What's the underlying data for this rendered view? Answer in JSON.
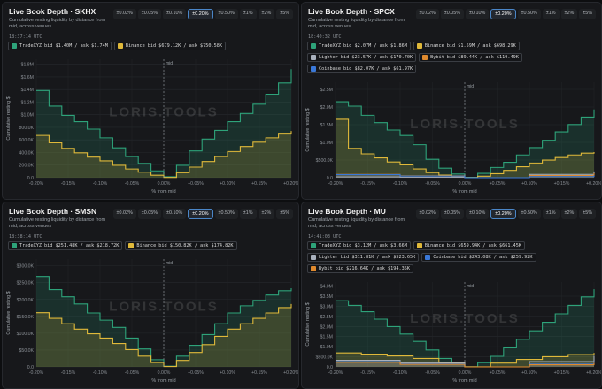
{
  "chart_data": [
    {
      "type": "area",
      "title": "Live Book Depth · SKHX",
      "subtitle": "Cumulative resting liquidity by distance from mid, across venues",
      "timestamp": "18:37:14 UTC",
      "tabs": [
        "±0.02%",
        "±0.05%",
        "±0.10%",
        "±0.20%",
        "±0.50%",
        "±1%",
        "±2%",
        "±5%"
      ],
      "active_tab": "±0.20%",
      "legend": [
        {
          "venue": "TradeXYZ",
          "text": "bid $1.40M / ask $1.74M",
          "color": "#2ea37a"
        },
        {
          "venue": "Binance",
          "text": "bid $679.12K / ask $750.58K",
          "color": "#e0b93a"
        }
      ],
      "ylabel": "Cumulative resting $",
      "xlabel": "% from mid",
      "mid_label": "mid",
      "watermark": "LORIS.TOOLS",
      "xticks": [
        "-0.20%",
        "-0.15%",
        "-0.10%",
        "-0.05%",
        "0.00%",
        "+0.05%",
        "+0.10%",
        "+0.15%",
        "+0.20%"
      ],
      "yticks": [
        "0.0",
        "200.0K",
        "400.0K",
        "600.0K",
        "800.0K",
        "$1.0M",
        "$1.2M",
        "$1.4M",
        "$1.6M",
        "$1.8M"
      ],
      "ylim": [
        0,
        1900000
      ],
      "series": [
        {
          "name": "TradeXYZ",
          "color": "#2ea37a",
          "x": [
            -0.2,
            -0.18,
            -0.16,
            -0.14,
            -0.12,
            -0.1,
            -0.08,
            -0.06,
            -0.04,
            -0.02,
            0,
            0.02,
            0.04,
            0.06,
            0.08,
            0.1,
            0.12,
            0.14,
            0.16,
            0.18,
            0.2
          ],
          "y": [
            1400000,
            1150000,
            1000000,
            900000,
            780000,
            640000,
            480000,
            340000,
            230000,
            110000,
            15000,
            200000,
            430000,
            620000,
            760000,
            900000,
            1030000,
            1180000,
            1340000,
            1520000,
            1740000
          ]
        },
        {
          "name": "Binance",
          "color": "#e0b93a",
          "x": [
            -0.2,
            -0.18,
            -0.16,
            -0.14,
            -0.12,
            -0.1,
            -0.08,
            -0.06,
            -0.04,
            -0.02,
            0,
            0.02,
            0.04,
            0.06,
            0.08,
            0.1,
            0.12,
            0.14,
            0.16,
            0.18,
            0.2
          ],
          "y": [
            679000,
            560000,
            470000,
            400000,
            330000,
            270000,
            200000,
            140000,
            90000,
            40000,
            5000,
            80000,
            170000,
            260000,
            340000,
            420000,
            500000,
            570000,
            640000,
            700000,
            750000
          ]
        }
      ]
    },
    {
      "type": "area",
      "title": "Live Book Depth · SPCX",
      "subtitle": "Cumulative resting liquidity by distance from mid, across venues",
      "timestamp": "18:40:32 UTC",
      "tabs": [
        "±0.02%",
        "±0.05%",
        "±0.10%",
        "±0.20%",
        "±0.50%",
        "±1%",
        "±2%",
        "±5%"
      ],
      "active_tab": "±0.20%",
      "legend": [
        {
          "venue": "TradeXYZ",
          "text": "bid $2.07M / ask $1.86M",
          "color": "#2ea37a"
        },
        {
          "venue": "Binance",
          "text": "bid $1.59M / ask $698.29K",
          "color": "#e0b93a"
        },
        {
          "venue": "Lighter",
          "text": "bid $23.57K / ask $170.70K",
          "color": "#a9b1bd"
        },
        {
          "venue": "Bybit",
          "text": "bid $89.44K / ask $119.49K",
          "color": "#e08a2e"
        },
        {
          "venue": "Coinbase",
          "text": "bid $82.07K / ask $61.97K",
          "color": "#3a78d8"
        }
      ],
      "ylabel": "Cumulative resting $",
      "xlabel": "% from mid",
      "mid_label": "mid",
      "watermark": "LORIS.TOOLS",
      "xticks": [
        "-0.20%",
        "-0.15%",
        "-0.10%",
        "-0.05%",
        "0.00%",
        "+0.05%",
        "+0.10%",
        "+0.15%",
        "+0.20%"
      ],
      "yticks": [
        "0.0",
        "$500.0K",
        "$1.0M",
        "$1.5M",
        "$2.0M",
        "$2.5M"
      ],
      "ylim": [
        0,
        2600000
      ],
      "series": [
        {
          "name": "TradeXYZ",
          "color": "#2ea37a",
          "x": [
            -0.2,
            -0.18,
            -0.16,
            -0.14,
            -0.12,
            -0.1,
            -0.08,
            -0.06,
            -0.04,
            -0.02,
            0,
            0.02,
            0.04,
            0.06,
            0.08,
            0.1,
            0.12,
            0.14,
            0.16,
            0.18,
            0.2
          ],
          "y": [
            2070000,
            1950000,
            1700000,
            1500000,
            1300000,
            1150000,
            900000,
            500000,
            260000,
            100000,
            10000,
            120000,
            280000,
            420000,
            620000,
            820000,
            1020000,
            1250000,
            1450000,
            1650000,
            1860000
          ]
        },
        {
          "name": "Binance",
          "color": "#e0b93a",
          "x": [
            -0.2,
            -0.18,
            -0.16,
            -0.14,
            -0.12,
            -0.1,
            -0.08,
            -0.06,
            -0.04,
            -0.02,
            0,
            0.02,
            0.04,
            0.06,
            0.08,
            0.1,
            0.12,
            0.14,
            0.16,
            0.18,
            0.2
          ],
          "y": [
            1590000,
            800000,
            650000,
            540000,
            430000,
            350000,
            240000,
            140000,
            70000,
            25000,
            5000,
            40000,
            110000,
            200000,
            300000,
            400000,
            480000,
            550000,
            620000,
            670000,
            698000
          ]
        },
        {
          "name": "Lighter",
          "color": "#a9b1bd",
          "x": [
            -0.2,
            -0.1,
            0,
            0.1,
            0.2
          ],
          "y": [
            23570,
            12000,
            0,
            90000,
            170700
          ]
        },
        {
          "name": "Bybit",
          "color": "#e08a2e",
          "x": [
            -0.2,
            -0.1,
            0,
            0.1,
            0.2
          ],
          "y": [
            89440,
            50000,
            0,
            60000,
            119490
          ]
        },
        {
          "name": "Coinbase",
          "color": "#3a78d8",
          "x": [
            -0.2,
            -0.1,
            0,
            0.1,
            0.2
          ],
          "y": [
            82070,
            45000,
            0,
            30000,
            61970
          ]
        }
      ]
    },
    {
      "type": "area",
      "title": "Live Book Depth · SMSN",
      "subtitle": "Cumulative resting liquidity by distance from mid, across venues",
      "timestamp": "18:38:14 UTC",
      "tabs": [
        "±0.02%",
        "±0.05%",
        "±0.10%",
        "±0.20%",
        "±0.50%",
        "±1%",
        "±2%",
        "±5%"
      ],
      "active_tab": "±0.20%",
      "legend": [
        {
          "venue": "TradeXYZ",
          "text": "bid $251.48K / ask $218.72K",
          "color": "#2ea37a"
        },
        {
          "venue": "Binance",
          "text": "bid $150.82K / ask $174.82K",
          "color": "#e0b93a"
        }
      ],
      "ylabel": "Cumulative resting $",
      "xlabel": "% from mid",
      "mid_label": "mid",
      "watermark": "LORIS.TOOLS",
      "xticks": [
        "-0.20%",
        "-0.15%",
        "-0.10%",
        "-0.05%",
        "0.00%",
        "+0.05%",
        "+0.10%",
        "+0.15%",
        "+0.20%"
      ],
      "yticks": [
        "0.0",
        "$50.0K",
        "$100.0K",
        "$150.0K",
        "$200.0K",
        "$250.0K",
        "$300.0K"
      ],
      "ylim": [
        0,
        300000
      ],
      "series": [
        {
          "name": "TradeXYZ",
          "color": "#2ea37a",
          "x": [
            -0.2,
            -0.18,
            -0.16,
            -0.14,
            -0.12,
            -0.1,
            -0.08,
            -0.06,
            -0.04,
            -0.02,
            0,
            0.02,
            0.04,
            0.06,
            0.08,
            0.1,
            0.12,
            0.14,
            0.16,
            0.18,
            0.2
          ],
          "y": [
            251480,
            215000,
            195000,
            175000,
            150000,
            130000,
            110000,
            80000,
            50000,
            20000,
            2000,
            30000,
            60000,
            90000,
            120000,
            150000,
            170000,
            185000,
            200000,
            212000,
            218720
          ]
        },
        {
          "name": "Binance",
          "color": "#e0b93a",
          "x": [
            -0.2,
            -0.18,
            -0.16,
            -0.14,
            -0.12,
            -0.1,
            -0.08,
            -0.06,
            -0.04,
            -0.02,
            0,
            0.02,
            0.04,
            0.06,
            0.08,
            0.1,
            0.12,
            0.14,
            0.16,
            0.18,
            0.2
          ],
          "y": [
            150820,
            135000,
            120000,
            105000,
            92000,
            80000,
            65000,
            48000,
            30000,
            12000,
            1000,
            18000,
            40000,
            62000,
            85000,
            105000,
            120000,
            135000,
            150000,
            165000,
            174820
          ]
        }
      ]
    },
    {
      "type": "area",
      "title": "Live Book Depth · MU",
      "subtitle": "Cumulative resting liquidity by distance from mid, across venues",
      "timestamp": "14:41:03 UTC",
      "tabs": [
        "±0.02%",
        "±0.05%",
        "±0.10%",
        "±0.20%",
        "±0.50%",
        "±1%",
        "±2%",
        "±5%"
      ],
      "active_tab": "±0.20%",
      "legend": [
        {
          "venue": "TradeXYZ",
          "text": "bid $3.12M / ask $3.66M",
          "color": "#2ea37a"
        },
        {
          "venue": "Binance",
          "text": "bid $659.94K / ask $661.45K",
          "color": "#e0b93a"
        },
        {
          "venue": "Lighter",
          "text": "bid $311.81K / ask $523.65K",
          "color": "#a9b1bd"
        },
        {
          "venue": "Coinbase",
          "text": "bid $243.08K / ask $259.92K",
          "color": "#3a78d8"
        },
        {
          "venue": "Bybit",
          "text": "bid $216.64K / ask $194.35K",
          "color": "#e08a2e"
        }
      ],
      "ylabel": "Cumulative resting $",
      "xlabel": "% from mid",
      "mid_label": "mid",
      "watermark": "LORIS.TOOLS",
      "xticks": [
        "-0.20%",
        "-0.15%",
        "-0.10%",
        "-0.05%",
        "0.00%",
        "+0.05%",
        "+0.10%",
        "+0.15%",
        "+0.20%"
      ],
      "yticks": [
        "0.0",
        "$500.0K",
        "$1.0M",
        "$1.5M",
        "$2.0M",
        "$2.5M",
        "$3.0M",
        "$3.5M",
        "$4.0M"
      ],
      "ylim": [
        0,
        4000000
      ],
      "series": [
        {
          "name": "TradeXYZ",
          "color": "#2ea37a",
          "x": [
            -0.2,
            -0.18,
            -0.16,
            -0.14,
            -0.12,
            -0.1,
            -0.08,
            -0.06,
            -0.04,
            -0.02,
            0,
            0.02,
            0.04,
            0.06,
            0.08,
            0.1,
            0.12,
            0.14,
            0.16,
            0.18,
            0.2
          ],
          "y": [
            3120000,
            2900000,
            2600000,
            2250000,
            1900000,
            1550000,
            1200000,
            800000,
            400000,
            150000,
            10000,
            200000,
            500000,
            900000,
            1300000,
            1700000,
            2100000,
            2500000,
            2900000,
            3300000,
            3660000
          ]
        },
        {
          "name": "Binance",
          "color": "#e0b93a",
          "x": [
            -0.2,
            -0.16,
            -0.12,
            -0.08,
            -0.04,
            0,
            0.04,
            0.08,
            0.12,
            0.16,
            0.2
          ],
          "y": [
            659940,
            600000,
            520000,
            400000,
            200000,
            5000,
            180000,
            350000,
            480000,
            580000,
            661450
          ]
        },
        {
          "name": "Lighter",
          "color": "#a9b1bd",
          "x": [
            -0.2,
            -0.1,
            0,
            0.1,
            0.2
          ],
          "y": [
            311810,
            180000,
            0,
            250000,
            523650
          ]
        },
        {
          "name": "Coinbase",
          "color": "#3a78d8",
          "x": [
            -0.2,
            -0.1,
            0,
            0.1,
            0.2
          ],
          "y": [
            243080,
            140000,
            0,
            130000,
            259920
          ]
        },
        {
          "name": "Bybit",
          "color": "#e08a2e",
          "x": [
            -0.2,
            -0.1,
            0,
            0.1,
            0.2
          ],
          "y": [
            216640,
            120000,
            0,
            100000,
            194350
          ]
        }
      ]
    }
  ]
}
